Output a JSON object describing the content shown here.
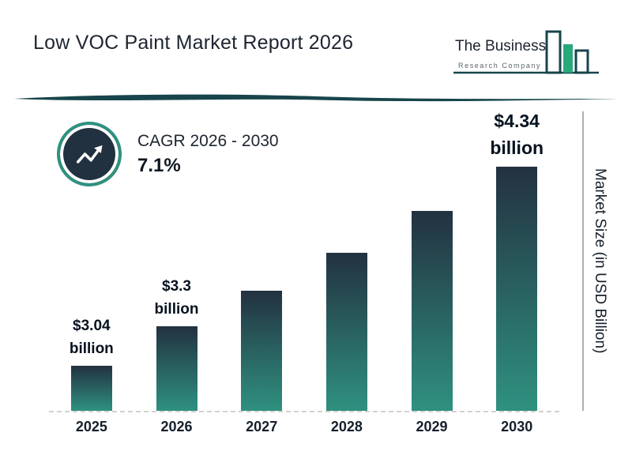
{
  "title": "Low VOC Paint Market Report 2026",
  "logo": {
    "name": "The Business",
    "subtitle": "Research Company"
  },
  "cagr": {
    "label": "CAGR 2026 - 2030",
    "value": "7.1%"
  },
  "y_axis_label": "Market Size (in USD Billion)",
  "colors": {
    "bar_top": "#233140",
    "bar_bottom": "#2f9180",
    "accent_teal": "#2f9180",
    "dark_navy": "#223140",
    "divider": "#17454b",
    "logo_green": "#28a97c"
  },
  "chart_data": {
    "type": "bar",
    "title": "Low VOC Paint Market Report 2026",
    "xlabel": "",
    "ylabel": "Market Size (in USD Billion)",
    "categories": [
      "2025",
      "2026",
      "2027",
      "2028",
      "2029",
      "2030"
    ],
    "values": [
      3.04,
      3.3,
      3.53,
      3.78,
      4.05,
      4.34
    ],
    "value_labels": [
      "$3.04 billion",
      "$3.3 billion",
      "",
      "",
      "",
      "$4.34 billion"
    ],
    "grid": false,
    "legend": "none",
    "ylim_visual": [
      2.75,
      4.6
    ],
    "bars": [
      {
        "year": "2025",
        "value": 3.04,
        "label": [
          "$3.04",
          "billion"
        ],
        "emphasis": false
      },
      {
        "year": "2026",
        "value": 3.3,
        "label": [
          "$3.3",
          "billion"
        ],
        "emphasis": false
      },
      {
        "year": "2027",
        "value": 3.53,
        "label": null,
        "emphasis": false
      },
      {
        "year": "2028",
        "value": 3.78,
        "label": null,
        "emphasis": false
      },
      {
        "year": "2029",
        "value": 4.05,
        "label": null,
        "emphasis": false
      },
      {
        "year": "2030",
        "value": 4.34,
        "label": [
          "$4.34",
          "billion"
        ],
        "emphasis": true
      }
    ]
  }
}
